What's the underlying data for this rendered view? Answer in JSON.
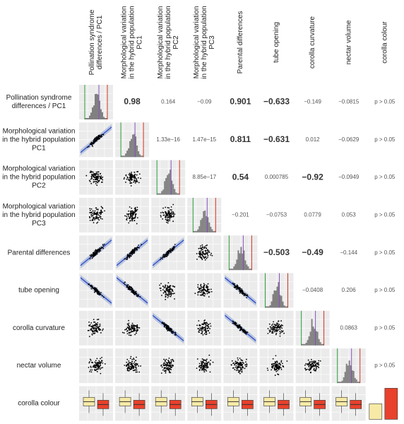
{
  "variables": [
    [
      "Pollination syndrome",
      "differences / PC1"
    ],
    [
      "Morphological variation",
      "in the hybrid population",
      "PC1"
    ],
    [
      "Morphological variation",
      "in the hybrid population",
      "PC2"
    ],
    [
      "Morphological variation",
      "in the hybrid population",
      "PC3"
    ],
    [
      "Parental differences"
    ],
    [
      "tube opening"
    ],
    [
      "corolla curvature"
    ],
    [
      "nectar volume"
    ],
    [
      "corolla colour"
    ]
  ],
  "correlations": [
    [
      {
        "text": "0.98",
        "bold": true
      },
      {
        "text": "0.164",
        "bold": false
      },
      {
        "text": "−0.09",
        "bold": false
      },
      {
        "text": "0.901",
        "bold": true
      },
      {
        "text": "−0.633",
        "bold": true
      },
      {
        "text": "−0.149",
        "bold": false
      },
      {
        "text": "−0.0815",
        "bold": false
      },
      {
        "text": "p > 0.05",
        "bold": false
      }
    ],
    [
      {
        "text": "1.33e−16",
        "bold": false
      },
      {
        "text": "1.47e−15",
        "bold": false
      },
      {
        "text": "0.811",
        "bold": true
      },
      {
        "text": "−0.631",
        "bold": true
      },
      {
        "text": "0.012",
        "bold": false
      },
      {
        "text": "−0.0629",
        "bold": false
      },
      {
        "text": "p > 0.05",
        "bold": false
      }
    ],
    [
      {
        "text": "8.85e−17",
        "bold": false
      },
      {
        "text": "0.54",
        "bold": true
      },
      {
        "text": "0.000785",
        "bold": false
      },
      {
        "text": "−0.92",
        "bold": true
      },
      {
        "text": "−0.0949",
        "bold": false
      },
      {
        "text": "p > 0.05",
        "bold": false
      }
    ],
    [
      {
        "text": "−0.201",
        "bold": false
      },
      {
        "text": "−0.0753",
        "bold": false
      },
      {
        "text": "0.0779",
        "bold": false
      },
      {
        "text": "0.053",
        "bold": false
      },
      {
        "text": "p > 0.05",
        "bold": false
      }
    ],
    [
      {
        "text": "−0.503",
        "bold": true
      },
      {
        "text": "−0.49",
        "bold": true
      },
      {
        "text": "−0.144",
        "bold": false
      },
      {
        "text": "p > 0.05",
        "bold": false
      }
    ],
    [
      {
        "text": "−0.0408",
        "bold": false
      },
      {
        "text": "0.206",
        "bold": false
      },
      {
        "text": "p > 0.05",
        "bold": false
      }
    ],
    [
      {
        "text": "0.0863",
        "bold": false
      },
      {
        "text": "p > 0.05",
        "bold": false
      }
    ],
    [
      {
        "text": "p > 0.05",
        "bold": false
      }
    ]
  ]
}
